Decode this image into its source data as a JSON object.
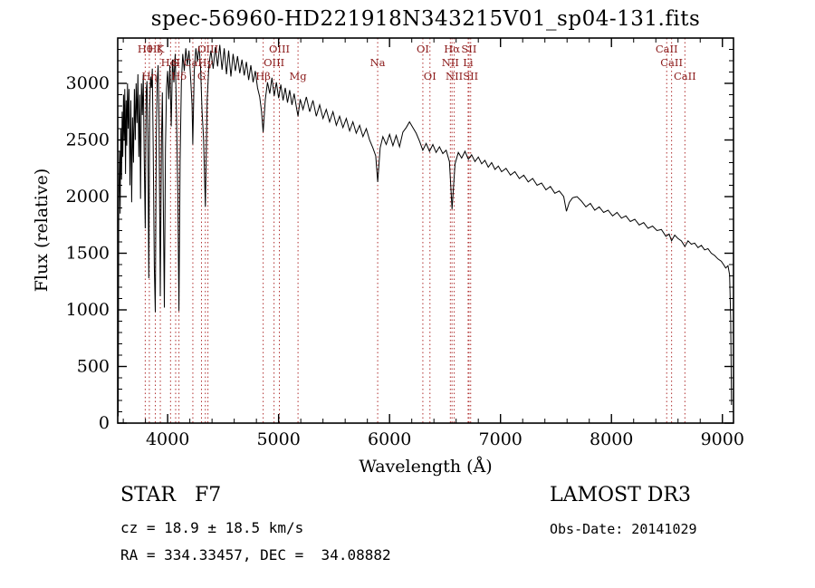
{
  "title": "spec-56960-HD221918N343215V01_sp04-131.fits",
  "annotations": {
    "class_label": "STAR   F7",
    "cz": "cz = 18.9 ± 18.5 km/s",
    "radec": "RA = 334.33457, DEC =  34.08882",
    "survey": "LAMOST DR3",
    "obs_date": "Obs-Date: 20141029"
  },
  "colors": {
    "spectrum": "#000000",
    "axis": "#000000",
    "line_marker": "#b03030",
    "line_label": "#8b1a1a",
    "background": "#ffffff"
  },
  "chart_data": {
    "type": "line",
    "title": "spec-56960-HD221918N343215V01_sp04-131.fits",
    "xlabel": "Wavelength (Å)",
    "ylabel": "Flux (relative)",
    "xlim": [
      3550,
      9100
    ],
    "ylim": [
      0,
      3400
    ],
    "x_ticks": [
      4000,
      5000,
      6000,
      7000,
      8000,
      9000
    ],
    "y_ticks": [
      0,
      500,
      1000,
      1500,
      2000,
      2500,
      3000
    ],
    "x_minor_step": 200,
    "y_minor_step": 100,
    "grid": false,
    "legend": false,
    "spectral_lines": [
      {
        "label": "Hθ",
        "wavelength": 3798,
        "row": 1
      },
      {
        "label": "Hη",
        "wavelength": 3835,
        "row": 3
      },
      {
        "label": "Hζ",
        "wavelength": 3889,
        "row": 1
      },
      {
        "label": "K",
        "wavelength": 3934,
        "row": 1
      },
      {
        "label": "HeI",
        "wavelength": 4026,
        "row": 2
      },
      {
        "label": "S",
        "wavelength": 4072,
        "row": 2
      },
      {
        "label": "Hδ",
        "wavelength": 4102,
        "row": 3
      },
      {
        "label": "CaI",
        "wavelength": 4227,
        "row": 2
      },
      {
        "label": "G",
        "wavelength": 4305,
        "row": 3
      },
      {
        "label": "Hγ",
        "wavelength": 4340,
        "row": 2
      },
      {
        "label": "OIII",
        "wavelength": 4363,
        "row": 1
      },
      {
        "label": "Hβ",
        "wavelength": 4861,
        "row": 3
      },
      {
        "label": "OIII",
        "wavelength": 4959,
        "row": 2
      },
      {
        "label": "OIII",
        "wavelength": 5007,
        "row": 1
      },
      {
        "label": "Mg",
        "wavelength": 5175,
        "row": 3
      },
      {
        "label": "Na",
        "wavelength": 5893,
        "row": 2
      },
      {
        "label": "OI",
        "wavelength": 6300,
        "row": 1
      },
      {
        "label": "OI",
        "wavelength": 6364,
        "row": 3
      },
      {
        "label": "NII",
        "wavelength": 6548,
        "row": 2
      },
      {
        "label": "Hα",
        "wavelength": 6563,
        "row": 1
      },
      {
        "label": "NII",
        "wavelength": 6583,
        "row": 3
      },
      {
        "label": "Li",
        "wavelength": 6708,
        "row": 2
      },
      {
        "label": "SII",
        "wavelength": 6716,
        "row": 1
      },
      {
        "label": "SII",
        "wavelength": 6731,
        "row": 3
      },
      {
        "label": "CaII",
        "wavelength": 8498,
        "row": 1
      },
      {
        "label": "CaII",
        "wavelength": 8542,
        "row": 2
      },
      {
        "label": "CaII",
        "wavelength": 8662,
        "row": 3
      }
    ],
    "series": [
      {
        "name": "spectrum",
        "points": [
          [
            3555,
            60
          ],
          [
            3560,
            1950
          ],
          [
            3566,
            2400
          ],
          [
            3572,
            1850
          ],
          [
            3578,
            2600
          ],
          [
            3584,
            2150
          ],
          [
            3590,
            2750
          ],
          [
            3596,
            2350
          ],
          [
            3602,
            2900
          ],
          [
            3608,
            2500
          ],
          [
            3614,
            2950
          ],
          [
            3620,
            2200
          ],
          [
            3626,
            2850
          ],
          [
            3632,
            2450
          ],
          [
            3638,
            3000
          ],
          [
            3645,
            2600
          ],
          [
            3652,
            2950
          ],
          [
            3660,
            2100
          ],
          [
            3668,
            2850
          ],
          [
            3676,
            1950
          ],
          [
            3684,
            2700
          ],
          [
            3692,
            2300
          ],
          [
            3700,
            2950
          ],
          [
            3708,
            2500
          ],
          [
            3716,
            3000
          ],
          [
            3724,
            2650
          ],
          [
            3732,
            3080
          ],
          [
            3740,
            2350
          ],
          [
            3748,
            2900
          ],
          [
            3756,
            1980
          ],
          [
            3764,
            3000
          ],
          [
            3772,
            2720
          ],
          [
            3780,
            3080
          ],
          [
            3788,
            2380
          ],
          [
            3798,
            1720
          ],
          [
            3806,
            2920
          ],
          [
            3814,
            3020
          ],
          [
            3822,
            2520
          ],
          [
            3830,
            1280
          ],
          [
            3838,
            2780
          ],
          [
            3846,
            3060
          ],
          [
            3854,
            2960
          ],
          [
            3862,
            3130
          ],
          [
            3870,
            2420
          ],
          [
            3880,
            1380
          ],
          [
            3889,
            980
          ],
          [
            3898,
            2520
          ],
          [
            3906,
            3010
          ],
          [
            3914,
            3160
          ],
          [
            3922,
            2680
          ],
          [
            3934,
            1120
          ],
          [
            3944,
            2470
          ],
          [
            3952,
            2920
          ],
          [
            3962,
            1820
          ],
          [
            3970,
            1020
          ],
          [
            3980,
            2420
          ],
          [
            3990,
            2960
          ],
          [
            4000,
            3110
          ],
          [
            4010,
            2860
          ],
          [
            4020,
            3160
          ],
          [
            4032,
            2620
          ],
          [
            4044,
            3210
          ],
          [
            4056,
            3010
          ],
          [
            4068,
            3260
          ],
          [
            4080,
            2720
          ],
          [
            4092,
            2020
          ],
          [
            4102,
            990
          ],
          [
            4112,
            2320
          ],
          [
            4124,
            3010
          ],
          [
            4136,
            3260
          ],
          [
            4150,
            3110
          ],
          [
            4164,
            3310
          ],
          [
            4178,
            3160
          ],
          [
            4192,
            3290
          ],
          [
            4206,
            3060
          ],
          [
            4220,
            2810
          ],
          [
            4227,
            2460
          ],
          [
            4240,
            3110
          ],
          [
            4254,
            3310
          ],
          [
            4268,
            3190
          ],
          [
            4282,
            3330
          ],
          [
            4296,
            3160
          ],
          [
            4310,
            2760
          ],
          [
            4324,
            2510
          ],
          [
            4340,
            1910
          ],
          [
            4356,
            2860
          ],
          [
            4372,
            3160
          ],
          [
            4390,
            3290
          ],
          [
            4410,
            3130
          ],
          [
            4430,
            3320
          ],
          [
            4450,
            3150
          ],
          [
            4470,
            3340
          ],
          [
            4490,
            3120
          ],
          [
            4510,
            3310
          ],
          [
            4530,
            3080
          ],
          [
            4550,
            3290
          ],
          [
            4570,
            3060
          ],
          [
            4590,
            3260
          ],
          [
            4610,
            3110
          ],
          [
            4630,
            3240
          ],
          [
            4650,
            3090
          ],
          [
            4670,
            3210
          ],
          [
            4690,
            3070
          ],
          [
            4710,
            3190
          ],
          [
            4730,
            3030
          ],
          [
            4750,
            3160
          ],
          [
            4770,
            3010
          ],
          [
            4790,
            3110
          ],
          [
            4810,
            2960
          ],
          [
            4830,
            2880
          ],
          [
            4845,
            2760
          ],
          [
            4861,
            2570
          ],
          [
            4880,
            2860
          ],
          [
            4900,
            3010
          ],
          [
            4920,
            2910
          ],
          [
            4940,
            3050
          ],
          [
            4960,
            2890
          ],
          [
            4980,
            3010
          ],
          [
            5000,
            2870
          ],
          [
            5020,
            2990
          ],
          [
            5040,
            2850
          ],
          [
            5060,
            2960
          ],
          [
            5080,
            2830
          ],
          [
            5100,
            2940
          ],
          [
            5120,
            2810
          ],
          [
            5140,
            2910
          ],
          [
            5160,
            2790
          ],
          [
            5175,
            2710
          ],
          [
            5195,
            2860
          ],
          [
            5220,
            2770
          ],
          [
            5250,
            2880
          ],
          [
            5280,
            2750
          ],
          [
            5310,
            2850
          ],
          [
            5340,
            2710
          ],
          [
            5370,
            2810
          ],
          [
            5400,
            2690
          ],
          [
            5430,
            2770
          ],
          [
            5460,
            2660
          ],
          [
            5490,
            2750
          ],
          [
            5520,
            2630
          ],
          [
            5550,
            2710
          ],
          [
            5580,
            2610
          ],
          [
            5610,
            2690
          ],
          [
            5640,
            2580
          ],
          [
            5670,
            2660
          ],
          [
            5700,
            2560
          ],
          [
            5730,
            2630
          ],
          [
            5760,
            2530
          ],
          [
            5790,
            2600
          ],
          [
            5820,
            2500
          ],
          [
            5850,
            2430
          ],
          [
            5875,
            2360
          ],
          [
            5893,
            2130
          ],
          [
            5915,
            2430
          ],
          [
            5940,
            2530
          ],
          [
            5970,
            2460
          ],
          [
            6000,
            2550
          ],
          [
            6030,
            2450
          ],
          [
            6060,
            2540
          ],
          [
            6090,
            2440
          ],
          [
            6120,
            2570
          ],
          [
            6150,
            2610
          ],
          [
            6180,
            2660
          ],
          [
            6210,
            2610
          ],
          [
            6240,
            2560
          ],
          [
            6270,
            2490
          ],
          [
            6300,
            2410
          ],
          [
            6330,
            2470
          ],
          [
            6360,
            2400
          ],
          [
            6390,
            2460
          ],
          [
            6420,
            2390
          ],
          [
            6450,
            2440
          ],
          [
            6480,
            2380
          ],
          [
            6510,
            2410
          ],
          [
            6540,
            2310
          ],
          [
            6563,
            1890
          ],
          [
            6590,
            2290
          ],
          [
            6620,
            2390
          ],
          [
            6650,
            2340
          ],
          [
            6680,
            2400
          ],
          [
            6710,
            2330
          ],
          [
            6740,
            2370
          ],
          [
            6770,
            2310
          ],
          [
            6800,
            2350
          ],
          [
            6830,
            2290
          ],
          [
            6860,
            2320
          ],
          [
            6890,
            2260
          ],
          [
            6920,
            2300
          ],
          [
            6950,
            2240
          ],
          [
            6980,
            2270
          ],
          [
            7010,
            2220
          ],
          [
            7050,
            2250
          ],
          [
            7090,
            2190
          ],
          [
            7130,
            2220
          ],
          [
            7170,
            2160
          ],
          [
            7210,
            2190
          ],
          [
            7250,
            2130
          ],
          [
            7290,
            2160
          ],
          [
            7330,
            2100
          ],
          [
            7370,
            2120
          ],
          [
            7410,
            2060
          ],
          [
            7450,
            2090
          ],
          [
            7490,
            2030
          ],
          [
            7530,
            2050
          ],
          [
            7570,
            2000
          ],
          [
            7594,
            1870
          ],
          [
            7620,
            1950
          ],
          [
            7650,
            1990
          ],
          [
            7690,
            2000
          ],
          [
            7730,
            1960
          ],
          [
            7770,
            1910
          ],
          [
            7810,
            1940
          ],
          [
            7850,
            1880
          ],
          [
            7890,
            1910
          ],
          [
            7930,
            1860
          ],
          [
            7970,
            1880
          ],
          [
            8010,
            1830
          ],
          [
            8050,
            1860
          ],
          [
            8090,
            1810
          ],
          [
            8130,
            1830
          ],
          [
            8170,
            1780
          ],
          [
            8210,
            1800
          ],
          [
            8250,
            1750
          ],
          [
            8290,
            1770
          ],
          [
            8330,
            1720
          ],
          [
            8370,
            1740
          ],
          [
            8410,
            1700
          ],
          [
            8450,
            1710
          ],
          [
            8490,
            1650
          ],
          [
            8520,
            1670
          ],
          [
            8542,
            1610
          ],
          [
            8570,
            1660
          ],
          [
            8600,
            1630
          ],
          [
            8630,
            1610
          ],
          [
            8662,
            1560
          ],
          [
            8690,
            1610
          ],
          [
            8720,
            1580
          ],
          [
            8750,
            1590
          ],
          [
            8780,
            1550
          ],
          [
            8810,
            1570
          ],
          [
            8840,
            1530
          ],
          [
            8870,
            1540
          ],
          [
            8900,
            1500
          ],
          [
            8930,
            1480
          ],
          [
            8960,
            1450
          ],
          [
            8990,
            1430
          ],
          [
            9010,
            1400
          ],
          [
            9030,
            1370
          ],
          [
            9050,
            1390
          ],
          [
            9065,
            1310
          ],
          [
            9075,
            920
          ],
          [
            9082,
            160
          ]
        ]
      }
    ]
  }
}
